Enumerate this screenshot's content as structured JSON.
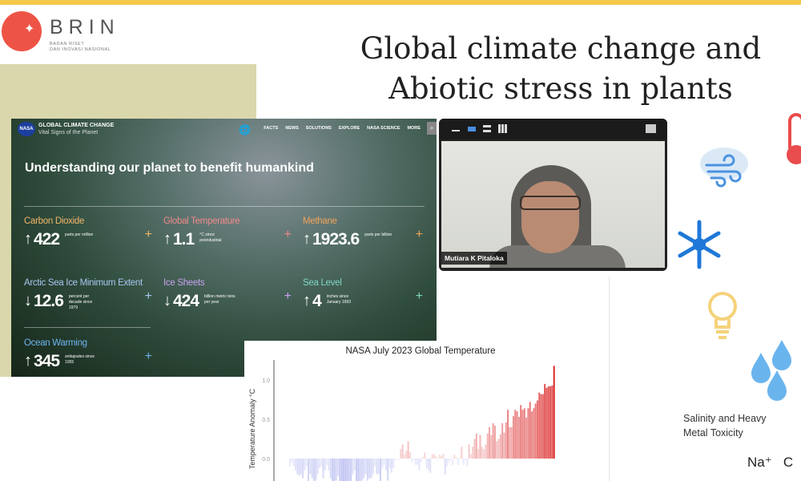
{
  "logo": {
    "name": "BRIN",
    "subtitle_line1": "BADAN RISET",
    "subtitle_line2": "DAN INOVASI NASIONAL"
  },
  "slide": {
    "title_line1": "Global climate change and",
    "title_line2": "Abiotic stress in plants",
    "salinity_label_line1": "Salinity and Heavy",
    "salinity_label_line2": "Metal Toxicity",
    "ions": "Na⁺   C",
    "icons": [
      "wind-cloud-icon",
      "thermometer-icon",
      "snowflake-icon",
      "lightbulb-icon",
      "water-drops-icon"
    ]
  },
  "nasa": {
    "logo": "NASA",
    "brand": "GLOBAL CLIMATE CHANGE",
    "tagline": "Vital Signs of the Planet",
    "nav": [
      "FACTS",
      "NEWS",
      "SOLUTIONS",
      "EXPLORE",
      "NASA SCIENCE",
      "MORE"
    ],
    "headline": "Understanding our planet to benefit humankind",
    "stats": [
      {
        "label": "Carbon Dioxide",
        "arrow": "↑",
        "value": "422",
        "unit": "parts per million",
        "color": "#f2b66b"
      },
      {
        "label": "Global Temperature",
        "arrow": "↑",
        "value": "1.1",
        "unit": "°C since preindustrial",
        "color": "#f08a8a"
      },
      {
        "label": "Methane",
        "arrow": "↑",
        "value": "1923.6",
        "unit": "parts per billion",
        "color": "#f2a35c"
      },
      {
        "label": "Arctic Sea Ice Minimum Extent",
        "arrow": "↓",
        "value": "12.6",
        "unit": "percent per decade since 1979",
        "color": "#a9c6f0"
      },
      {
        "label": "Ice Sheets",
        "arrow": "↓",
        "value": "424",
        "unit": "billion metric tons per year",
        "color": "#c9a2f0"
      },
      {
        "label": "Sea Level",
        "arrow": "↑",
        "value": "4",
        "unit": "inches since January 1993",
        "color": "#7fd6c4"
      },
      {
        "label": "Ocean Warming",
        "arrow": "↑",
        "value": "345",
        "unit": "zettajoules since 1955",
        "color": "#6fb3f0"
      }
    ]
  },
  "video": {
    "participant": "Mutiara K Pitaloka"
  },
  "chart_data": {
    "type": "bar",
    "title": "NASA July 2023 Global Temperature",
    "ylabel": "Temperature Anomaly °C",
    "xlabel": "",
    "yticks": [
      "0.0",
      "0.5",
      "1.0"
    ],
    "ylim": [
      -0.5,
      1.25
    ],
    "values": [
      -0.1,
      -0.05,
      -0.1,
      -0.15,
      -0.2,
      -0.22,
      -0.2,
      -0.25,
      -0.15,
      -0.1,
      -0.3,
      -0.2,
      -0.25,
      -0.3,
      -0.28,
      -0.2,
      -0.12,
      -0.1,
      -0.25,
      -0.15,
      -0.08,
      -0.15,
      -0.25,
      -0.35,
      -0.4,
      -0.28,
      -0.22,
      -0.38,
      -0.42,
      -0.45,
      -0.42,
      -0.44,
      -0.35,
      -0.35,
      -0.2,
      -0.15,
      -0.35,
      -0.4,
      -0.3,
      -0.28,
      -0.25,
      -0.2,
      -0.28,
      -0.25,
      -0.25,
      -0.2,
      -0.1,
      -0.2,
      -0.2,
      -0.33,
      -0.12,
      -0.08,
      -0.15,
      -0.28,
      -0.12,
      -0.18,
      -0.12,
      -0.02,
      -0.01,
      -0.02,
      0.12,
      0.18,
      0.05,
      0.1,
      0.22,
      0.08,
      -0.05,
      -0.02,
      -0.08,
      -0.08,
      -0.15,
      -0.05,
      0.02,
      0.08,
      -0.12,
      -0.15,
      -0.18,
      0.05,
      0.06,
      0.03,
      -0.02,
      0.05,
      0.03,
      0.06,
      -0.2,
      -0.1,
      -0.05,
      -0.02,
      -0.08,
      0.05,
      0.02,
      -0.08,
      0.01,
      0.15,
      -0.08,
      -0.02,
      -0.1,
      0.18,
      0.06,
      0.15,
      0.25,
      0.32,
      0.12,
      0.3,
      0.15,
      0.12,
      0.18,
      0.32,
      0.4,
      0.3,
      0.45,
      0.42,
      0.22,
      0.25,
      0.31,
      0.45,
      0.33,
      0.46,
      0.62,
      0.4,
      0.4,
      0.54,
      0.62,
      0.6,
      0.53,
      0.68,
      0.62,
      0.64,
      0.52,
      0.64,
      0.72,
      0.6,
      0.64,
      0.7,
      0.74,
      0.84,
      0.82,
      0.82,
      0.95,
      0.9,
      0.92,
      0.92,
      0.93,
      1.18
    ]
  }
}
